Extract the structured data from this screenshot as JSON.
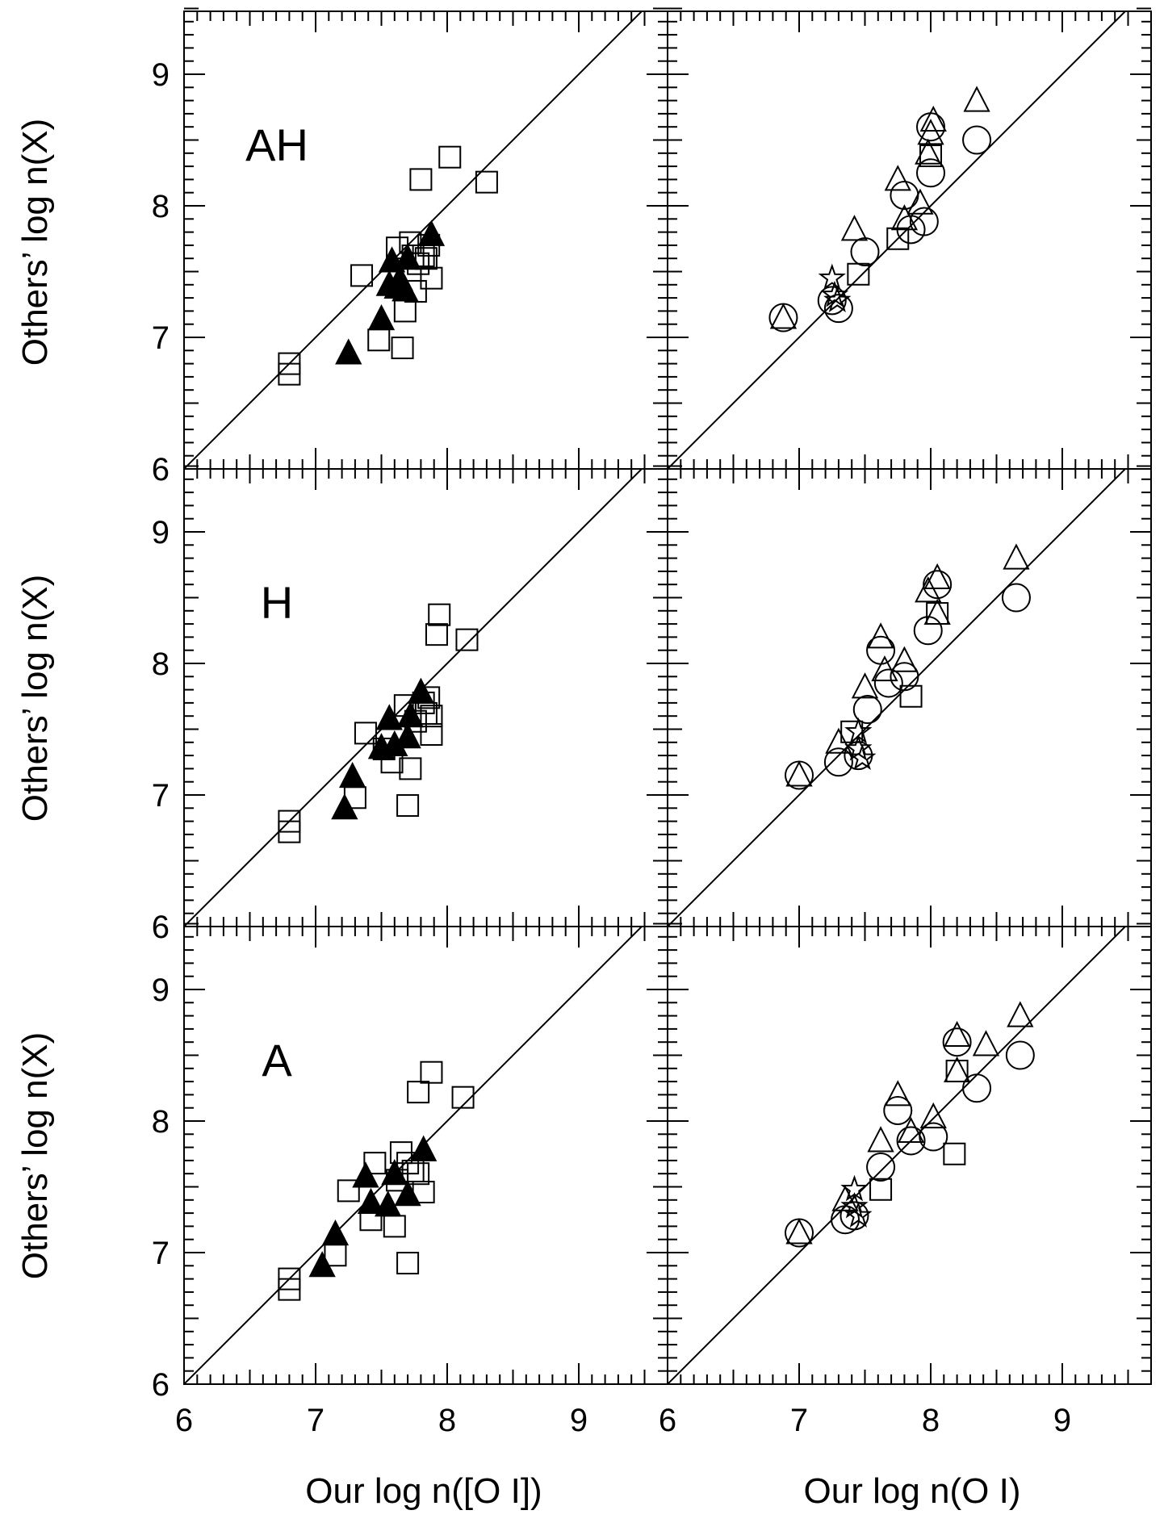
{
  "figure": {
    "y_title": "Others’ log n(X)",
    "x_titles": [
      "Our log n([O I])",
      "Our log n(O I)"
    ],
    "tick_values": [
      6,
      7,
      8,
      9
    ],
    "colors": {
      "line": "#000000",
      "background": "#ffffff"
    }
  },
  "chart_data": [
    {
      "type": "scatter",
      "row": 0,
      "col": 0,
      "panel_label": "AH",
      "xlabel": "",
      "ylabel": "Others’ log n(X)",
      "xlim": [
        6,
        9.5
      ],
      "ylim": [
        6,
        9.5
      ],
      "diagonal": "y = x",
      "series": [
        {
          "marker": "open-square",
          "points": [
            [
              6.8,
              6.8
            ],
            [
              6.8,
              6.72
            ],
            [
              7.35,
              7.47
            ],
            [
              7.48,
              6.98
            ],
            [
              7.62,
              7.68
            ],
            [
              7.66,
              6.92
            ],
            [
              7.68,
              7.2
            ],
            [
              7.72,
              7.72
            ],
            [
              7.74,
              7.62
            ],
            [
              7.76,
              7.35
            ],
            [
              7.78,
              7.56
            ],
            [
              7.82,
              7.62
            ],
            [
              7.84,
              7.6
            ],
            [
              7.86,
              7.7
            ],
            [
              7.88,
              7.45
            ],
            [
              7.8,
              8.2
            ],
            [
              8.02,
              8.37
            ],
            [
              8.3,
              8.18
            ]
          ]
        },
        {
          "marker": "filled-triangle",
          "points": [
            [
              7.25,
              6.88
            ],
            [
              7.5,
              7.14
            ],
            [
              7.56,
              7.4
            ],
            [
              7.58,
              7.58
            ],
            [
              7.62,
              7.38
            ],
            [
              7.64,
              7.44
            ],
            [
              7.68,
              7.36
            ],
            [
              7.7,
              7.6
            ],
            [
              7.88,
              7.78
            ]
          ]
        }
      ]
    },
    {
      "type": "scatter",
      "row": 0,
      "col": 1,
      "xlabel": "",
      "ylabel": "",
      "xlim": [
        6,
        9.5
      ],
      "ylim": [
        6,
        9.5
      ],
      "diagonal": "y = x",
      "series": [
        {
          "marker": "open-circle",
          "points": [
            [
              6.88,
              7.15
            ],
            [
              7.25,
              7.28
            ],
            [
              7.3,
              7.22
            ],
            [
              7.5,
              7.65
            ],
            [
              7.8,
              8.08
            ],
            [
              7.85,
              7.82
            ],
            [
              7.95,
              7.88
            ],
            [
              8.0,
              8.25
            ],
            [
              8.0,
              8.6
            ],
            [
              8.35,
              8.5
            ]
          ]
        },
        {
          "marker": "open-triangle",
          "points": [
            [
              6.88,
              7.15
            ],
            [
              7.42,
              7.82
            ],
            [
              7.75,
              8.2
            ],
            [
              7.8,
              7.9
            ],
            [
              7.92,
              8.02
            ],
            [
              7.98,
              8.4
            ],
            [
              8.0,
              8.55
            ],
            [
              8.02,
              8.65
            ],
            [
              8.35,
              8.8
            ]
          ]
        },
        {
          "marker": "open-square",
          "points": [
            [
              7.75,
              7.75
            ],
            [
              8.0,
              8.38
            ],
            [
              7.45,
              7.48
            ]
          ]
        },
        {
          "marker": "open-star",
          "points": [
            [
              7.25,
              7.45
            ],
            [
              7.27,
              7.32
            ],
            [
              7.29,
              7.28
            ]
          ]
        }
      ]
    },
    {
      "type": "scatter",
      "row": 1,
      "col": 0,
      "panel_label": "H",
      "xlabel": "",
      "ylabel": "Others’ log n(X)",
      "xlim": [
        6,
        9.5
      ],
      "ylim": [
        6,
        9.5
      ],
      "diagonal": "y = x",
      "series": [
        {
          "marker": "open-square",
          "points": [
            [
              6.8,
              6.8
            ],
            [
              6.8,
              6.72
            ],
            [
              7.3,
              6.98
            ],
            [
              7.38,
              7.47
            ],
            [
              7.52,
              7.35
            ],
            [
              7.58,
              7.25
            ],
            [
              7.68,
              7.68
            ],
            [
              7.7,
              6.92
            ],
            [
              7.72,
              7.2
            ],
            [
              7.76,
              7.56
            ],
            [
              7.82,
              7.7
            ],
            [
              7.84,
              7.62
            ],
            [
              7.86,
              7.74
            ],
            [
              7.88,
              7.6
            ],
            [
              7.88,
              7.46
            ],
            [
              7.92,
              8.22
            ],
            [
              7.94,
              8.37
            ],
            [
              8.15,
              8.18
            ]
          ]
        },
        {
          "marker": "filled-triangle",
          "points": [
            [
              7.22,
              6.9
            ],
            [
              7.28,
              7.14
            ],
            [
              7.5,
              7.36
            ],
            [
              7.56,
              7.58
            ],
            [
              7.6,
              7.38
            ],
            [
              7.7,
              7.44
            ],
            [
              7.72,
              7.6
            ],
            [
              7.8,
              7.78
            ]
          ]
        }
      ]
    },
    {
      "type": "scatter",
      "row": 1,
      "col": 1,
      "xlabel": "",
      "ylabel": "",
      "xlim": [
        6,
        9.5
      ],
      "ylim": [
        6,
        9.5
      ],
      "diagonal": "y = x",
      "series": [
        {
          "marker": "open-circle",
          "points": [
            [
              7.0,
              7.15
            ],
            [
              7.3,
              7.25
            ],
            [
              7.45,
              7.3
            ],
            [
              7.52,
              7.65
            ],
            [
              7.62,
              8.1
            ],
            [
              7.68,
              7.85
            ],
            [
              7.8,
              7.9
            ],
            [
              7.98,
              8.25
            ],
            [
              8.05,
              8.6
            ],
            [
              8.65,
              8.5
            ]
          ]
        },
        {
          "marker": "open-triangle",
          "points": [
            [
              7.0,
              7.15
            ],
            [
              7.3,
              7.4
            ],
            [
              7.5,
              7.82
            ],
            [
              7.62,
              8.2
            ],
            [
              7.65,
              7.95
            ],
            [
              7.8,
              8.02
            ],
            [
              7.98,
              8.55
            ],
            [
              8.05,
              8.65
            ],
            [
              8.05,
              8.38
            ],
            [
              8.65,
              8.8
            ]
          ]
        },
        {
          "marker": "open-square",
          "points": [
            [
              7.85,
              7.75
            ],
            [
              8.05,
              8.38
            ],
            [
              7.4,
              7.48
            ]
          ]
        },
        {
          "marker": "open-star",
          "points": [
            [
              7.45,
              7.48
            ],
            [
              7.45,
              7.35
            ],
            [
              7.48,
              7.28
            ]
          ]
        }
      ]
    },
    {
      "type": "scatter",
      "row": 2,
      "col": 0,
      "panel_label": "A",
      "xlabel": "Our log n([O I])",
      "ylabel": "Others’ log n(X)",
      "xlim": [
        6,
        9.5
      ],
      "ylim": [
        6,
        9.5
      ],
      "diagonal": "y = x",
      "series": [
        {
          "marker": "open-square",
          "points": [
            [
              6.8,
              6.8
            ],
            [
              6.8,
              6.72
            ],
            [
              7.15,
              6.98
            ],
            [
              7.25,
              7.47
            ],
            [
              7.42,
              7.25
            ],
            [
              7.45,
              7.68
            ],
            [
              7.6,
              7.2
            ],
            [
              7.62,
              7.55
            ],
            [
              7.65,
              7.76
            ],
            [
              7.7,
              6.92
            ],
            [
              7.7,
              7.68
            ],
            [
              7.74,
              7.62
            ],
            [
              7.78,
              7.6
            ],
            [
              7.82,
              7.46
            ],
            [
              7.78,
              8.22
            ],
            [
              7.88,
              8.37
            ],
            [
              8.12,
              8.18
            ]
          ]
        },
        {
          "marker": "filled-triangle",
          "points": [
            [
              7.05,
              6.9
            ],
            [
              7.15,
              7.14
            ],
            [
              7.38,
              7.58
            ],
            [
              7.42,
              7.38
            ],
            [
              7.55,
              7.36
            ],
            [
              7.6,
              7.6
            ],
            [
              7.7,
              7.44
            ],
            [
              7.82,
              7.78
            ]
          ]
        }
      ]
    },
    {
      "type": "scatter",
      "row": 2,
      "col": 1,
      "xlabel": "Our log n(O I)",
      "ylabel": "",
      "xlim": [
        6,
        9.5
      ],
      "ylim": [
        6,
        9.5
      ],
      "diagonal": "y = x",
      "series": [
        {
          "marker": "open-circle",
          "points": [
            [
              7.0,
              7.15
            ],
            [
              7.35,
              7.25
            ],
            [
              7.42,
              7.28
            ],
            [
              7.62,
              7.65
            ],
            [
              7.75,
              8.08
            ],
            [
              7.85,
              7.85
            ],
            [
              8.02,
              7.88
            ],
            [
              8.2,
              8.6
            ],
            [
              8.35,
              8.25
            ],
            [
              8.68,
              8.5
            ]
          ]
        },
        {
          "marker": "open-triangle",
          "points": [
            [
              7.0,
              7.15
            ],
            [
              7.35,
              7.4
            ],
            [
              7.62,
              7.85
            ],
            [
              7.75,
              8.2
            ],
            [
              7.85,
              7.92
            ],
            [
              8.02,
              8.03
            ],
            [
              8.2,
              8.65
            ],
            [
              8.2,
              8.38
            ],
            [
              8.42,
              8.58
            ],
            [
              8.68,
              8.8
            ]
          ]
        },
        {
          "marker": "open-square",
          "points": [
            [
              8.18,
              7.75
            ],
            [
              8.2,
              8.38
            ],
            [
              7.62,
              7.48
            ]
          ]
        },
        {
          "marker": "open-star",
          "points": [
            [
              7.42,
              7.48
            ],
            [
              7.42,
              7.35
            ],
            [
              7.45,
              7.28
            ]
          ]
        }
      ]
    }
  ]
}
